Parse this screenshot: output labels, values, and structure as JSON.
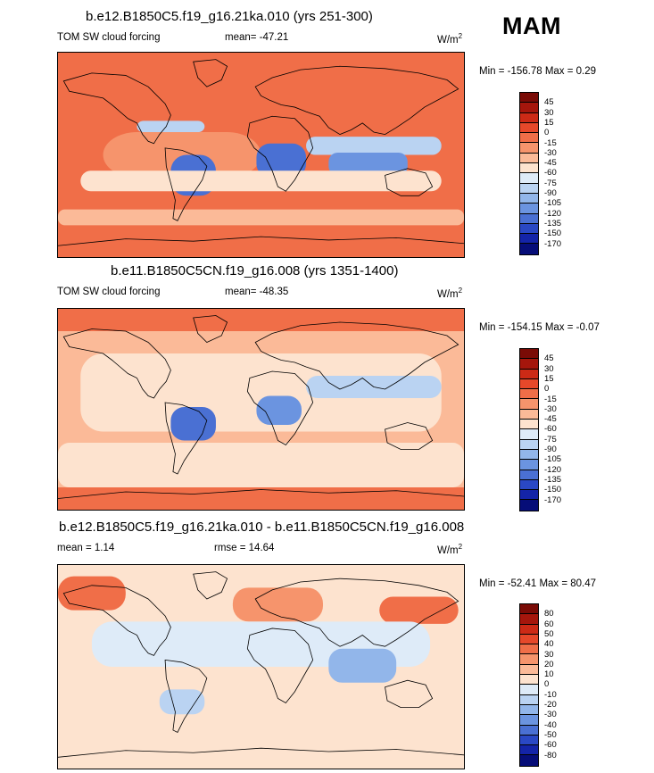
{
  "season": "MAM",
  "panels": [
    {
      "title": "b.e12.B1850C5.f19_g16.21ka.010 (yrs 251-300)",
      "left_label": "TOM SW cloud forcing",
      "mean_label": "mean= -47.21",
      "units": "W/m",
      "units_sup": "2",
      "minmax": "Min = -156.78 Max =   0.29",
      "colorbar_labels": [
        "45",
        "30",
        "15",
        "0",
        "-15",
        "-30",
        "-45",
        "-60",
        "-75",
        "-90",
        "-105",
        "-120",
        "-135",
        "-150",
        "-170"
      ],
      "colors": [
        "#7a0b06",
        "#a5160c",
        "#cc2a16",
        "#e6482a",
        "#f06e48",
        "#f6946c",
        "#fbba98",
        "#fde3cf",
        "#deebf8",
        "#bad3f2",
        "#92b6ea",
        "#6b94e0",
        "#4a70d3",
        "#2a48c4",
        "#1424a8",
        "#060d78"
      ],
      "base_color": "#f06e48"
    },
    {
      "title": "b.e11.B1850C5CN.f19_g16.008 (yrs 1351-1400)",
      "left_label": "TOM SW cloud forcing",
      "mean_label": "mean= -48.35",
      "units": "W/m",
      "units_sup": "2",
      "minmax": "Min = -154.15 Max =  -0.07",
      "colorbar_labels": [
        "45",
        "30",
        "15",
        "0",
        "-15",
        "-30",
        "-45",
        "-60",
        "-75",
        "-90",
        "-105",
        "-120",
        "-135",
        "-150",
        "-170"
      ],
      "colors": [
        "#7a0b06",
        "#a5160c",
        "#cc2a16",
        "#e6482a",
        "#f06e48",
        "#f6946c",
        "#fbba98",
        "#fde3cf",
        "#deebf8",
        "#bad3f2",
        "#92b6ea",
        "#6b94e0",
        "#4a70d3",
        "#2a48c4",
        "#1424a8",
        "#060d78"
      ],
      "base_color": "#f6946c"
    },
    {
      "title": "b.e12.B1850C5.f19_g16.21ka.010 - b.e11.B1850C5CN.f19_g16.008",
      "left_label": "mean =   1.14",
      "mean_label": "rmse =  14.64",
      "units": "W/m",
      "units_sup": "2",
      "minmax": "Min = -52.41 Max =  80.47",
      "colorbar_labels": [
        "80",
        "60",
        "50",
        "40",
        "30",
        "20",
        "10",
        "0",
        "-10",
        "-20",
        "-30",
        "-40",
        "-50",
        "-60",
        "-80"
      ],
      "colors": [
        "#7a0b06",
        "#a5160c",
        "#cc2a16",
        "#e6482a",
        "#f06e48",
        "#f6946c",
        "#fbba98",
        "#fde3cf",
        "#deebf8",
        "#bad3f2",
        "#92b6ea",
        "#6b94e0",
        "#4a70d3",
        "#2a48c4",
        "#1424a8",
        "#060d78"
      ],
      "base_color": "#fde3cf"
    }
  ]
}
